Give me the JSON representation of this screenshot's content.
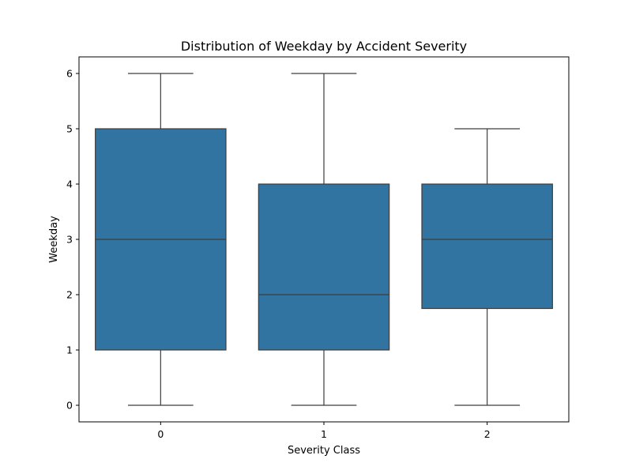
{
  "chart_data": {
    "type": "box",
    "title": "Distribution of Weekday by Accident Severity",
    "xlabel": "Severity Class",
    "ylabel": "Weekday",
    "ylim": [
      -0.3,
      6.3
    ],
    "yticks": [
      0,
      1,
      2,
      3,
      4,
      5,
      6
    ],
    "categories": [
      "0",
      "1",
      "2"
    ],
    "boxes": [
      {
        "category": "0",
        "whisker_low": 0,
        "q1": 1,
        "median": 3,
        "q3": 5,
        "whisker_high": 6
      },
      {
        "category": "1",
        "whisker_low": 0,
        "q1": 1,
        "median": 2,
        "q3": 4,
        "whisker_high": 6
      },
      {
        "category": "2",
        "whisker_low": 0,
        "q1": 1.75,
        "median": 3,
        "q3": 4,
        "whisker_high": 5
      }
    ],
    "box_color": "#3274a1",
    "line_color": "#3d3d3d",
    "grid": false,
    "legend": "none"
  }
}
